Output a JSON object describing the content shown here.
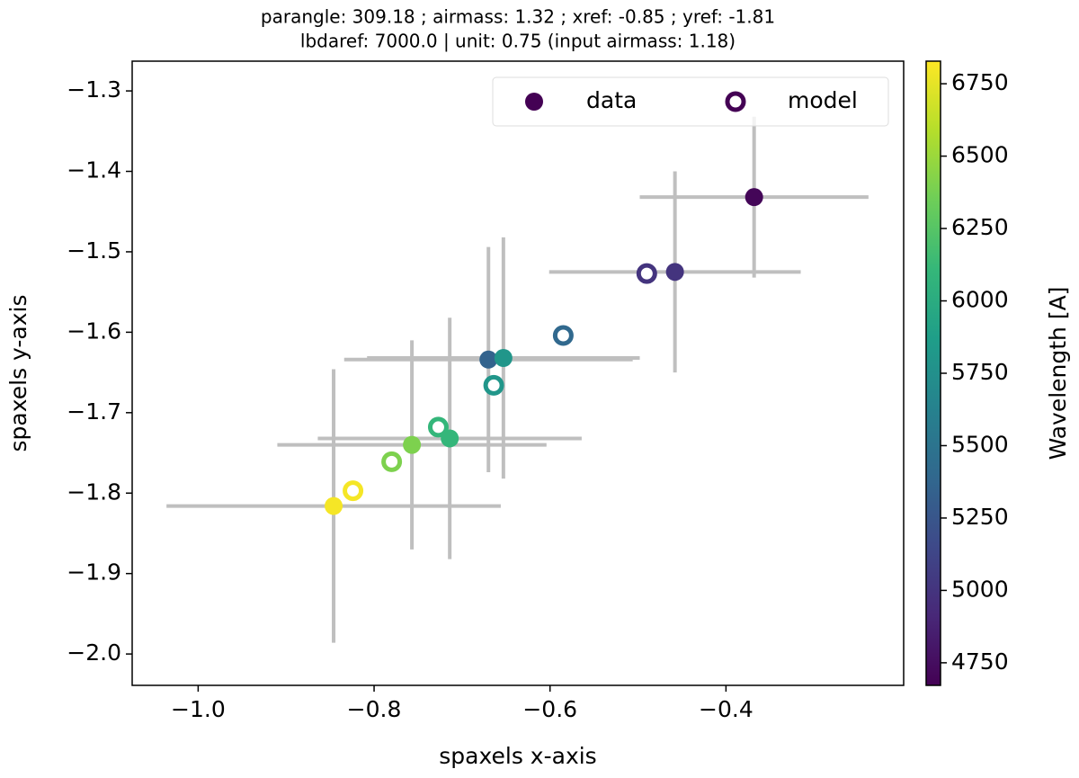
{
  "chart_data": {
    "type": "scatter",
    "title": "parangle: 309.18 ; airmass: 1.32 ; xref: -0.85 ; yref: -1.81",
    "subtitle": "lbdaref: 7000.0 | unit: 0.75 (input airmass: 1.18)",
    "x_label": "spaxels x-axis",
    "y_label": "spaxels y-axis",
    "colorbar_label": "Wavelength [A]",
    "colormap": "viridis",
    "clim": [
      4672,
      6828
    ],
    "cticks": [
      4750,
      5000,
      5250,
      5500,
      5750,
      6000,
      6250,
      6500,
      6750
    ],
    "xlim": [
      -1.075,
      -0.198
    ],
    "ylim": [
      -2.039,
      -1.263
    ],
    "xticks": [
      {
        "value": -1.0,
        "label": "−1.0"
      },
      {
        "value": -0.8,
        "label": "−0.8"
      },
      {
        "value": -0.6,
        "label": "−0.6"
      },
      {
        "value": -0.4,
        "label": "−0.4"
      }
    ],
    "yticks": [
      {
        "value": -2.0,
        "label": "−2.0"
      },
      {
        "value": -1.9,
        "label": "−1.9"
      },
      {
        "value": -1.8,
        "label": "−1.8"
      },
      {
        "value": -1.7,
        "label": "−1.7"
      },
      {
        "value": -1.6,
        "label": "−1.6"
      },
      {
        "value": -1.5,
        "label": "−1.5"
      },
      {
        "value": -1.4,
        "label": "−1.4"
      },
      {
        "value": -1.3,
        "label": "−1.3"
      }
    ],
    "legend": "upper right",
    "errorbar_color": "#bfbfbf",
    "series": [
      {
        "name": "data",
        "marker": "filled",
        "legend_color": "#440154",
        "x": [
          -0.368,
          -0.458,
          -0.67,
          -0.653,
          -0.714,
          -0.757,
          -0.846
        ],
        "y": [
          -1.432,
          -1.525,
          -1.634,
          -1.632,
          -1.732,
          -1.74,
          -1.816
        ],
        "xerr": [
          0.13,
          0.143,
          0.164,
          0.155,
          0.15,
          0.153,
          0.19
        ],
        "yerr": [
          0.1,
          0.125,
          0.14,
          0.15,
          0.15,
          0.13,
          0.17
        ],
        "c": [
          4700,
          5000,
          5350,
          5800,
          6100,
          6400,
          6800
        ]
      },
      {
        "name": "model",
        "marker": "open",
        "legend_color": "#440154",
        "x": [
          -0.49,
          -0.585,
          -0.664,
          -0.727,
          -0.78,
          -0.824
        ],
        "y": [
          -1.527,
          -1.604,
          -1.666,
          -1.718,
          -1.761,
          -1.797
        ],
        "c": [
          5000,
          5400,
          5800,
          6100,
          6400,
          6800
        ]
      }
    ]
  }
}
